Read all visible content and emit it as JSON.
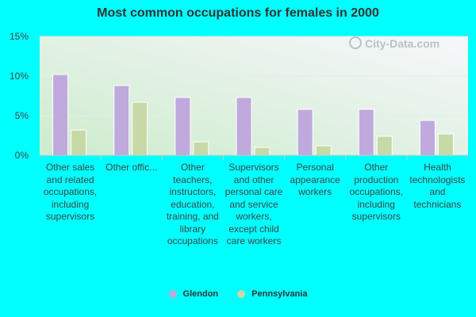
{
  "chart_data": {
    "type": "bar",
    "title": "Most common occupations for females in 2000",
    "categories": [
      "Other sales and related occupations, including supervisors",
      "Other offic...",
      "Other teachers, instructors, education, training, and library occupations",
      "Supervisors and other personal care and service workers, except child care workers",
      "Personal appearance workers",
      "Other production occupations, including supervisors",
      "Health technologists and technicians"
    ],
    "series": [
      {
        "name": "Glendon",
        "color": "#c0a9dc",
        "values": [
          10.2,
          8.8,
          7.3,
          7.3,
          5.8,
          5.8,
          4.4
        ]
      },
      {
        "name": "Pennsylvania",
        "color": "#c8d9a8",
        "values": [
          3.2,
          6.7,
          1.7,
          1.0,
          1.2,
          2.4,
          2.7
        ]
      }
    ],
    "y_ticks": [
      "0%",
      "5%",
      "10%",
      "15%"
    ],
    "ylim": [
      0,
      15
    ],
    "xlabel": "",
    "ylabel": "",
    "legend_position": "bottom"
  },
  "watermark": {
    "text": "City-Data.com"
  }
}
